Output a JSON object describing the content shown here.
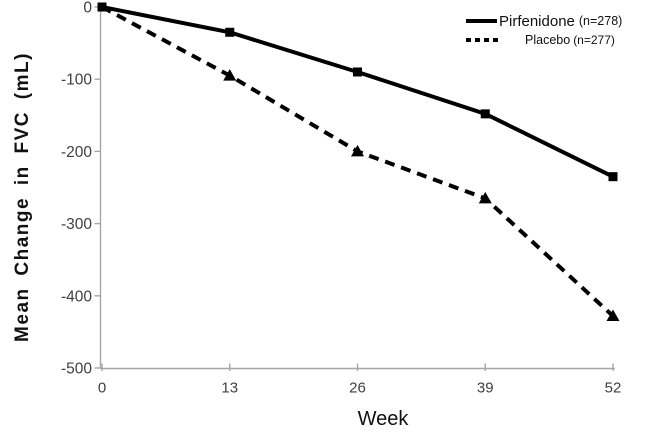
{
  "page": {
    "background": "#ffffff"
  },
  "colors": {
    "axis_line": "#a6a6a6",
    "tick_label": "#3f3f3f",
    "series_black": "#000000",
    "label_text": "#111111"
  },
  "chart_data": {
    "type": "line",
    "title": "",
    "xlabel": "Week",
    "ylabel": "Mean Change in FVC (mL)",
    "x": [
      0,
      13,
      26,
      39,
      52
    ],
    "xticks": [
      "0",
      "13",
      "26",
      "39",
      "52"
    ],
    "yticks": [
      0,
      -100,
      -200,
      -300,
      -400,
      -500
    ],
    "xlim": [
      0,
      52
    ],
    "ylim": [
      -500,
      0
    ],
    "grid": false,
    "legend_position": "top-right",
    "series": [
      {
        "name": "Pirfenidone",
        "n_label": "(n=278)",
        "line_style": "solid",
        "marker": "square",
        "color": "#000000",
        "values": [
          0,
          -35,
          -90,
          -148,
          -235
        ]
      },
      {
        "name": "Placebo",
        "n_label": "(n=277)",
        "line_style": "dashed",
        "marker": "triangle",
        "color": "#000000",
        "values": [
          0,
          -95,
          -200,
          -265,
          -428
        ]
      }
    ]
  }
}
